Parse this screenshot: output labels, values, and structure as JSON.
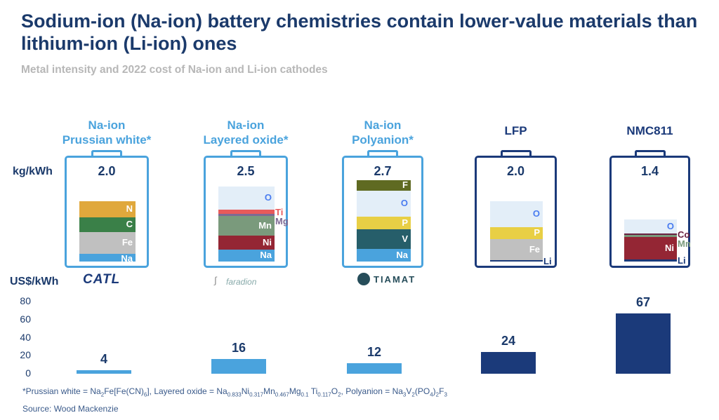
{
  "title": "Sodium-ion (Na-ion) battery chemistries contain lower-value materials than lithium-ion (Li-ion) ones",
  "subtitle": "Metal intensity and 2022 cost of Na-ion and Li-ion cathodes",
  "units": {
    "mass": "kg/kWh",
    "cost": "US$/kWh"
  },
  "colors": {
    "na_ion": "#4aa3dd",
    "li_ion": "#1b3a7a",
    "title": "#1b3a6b"
  },
  "logos": [
    "CATL",
    "faradion",
    "TIAMAT"
  ],
  "chart_data": [
    {
      "type": "stacked-bar",
      "ylabel": "kg/kWh",
      "chemistries": [
        {
          "name": [
            "Na-ion",
            "Prussian white*"
          ],
          "family": "na_ion",
          "total": "2.0",
          "logo": "CATL",
          "segments": [
            {
              "el": "Na",
              "kg": 0.26,
              "color": "#4aa3dd"
            },
            {
              "el": "Fe",
              "kg": 0.72,
              "color": "#c0c0c0"
            },
            {
              "el": "C",
              "kg": 0.49,
              "color": "#3a8048"
            },
            {
              "el": "N",
              "kg": 0.53,
              "color": "#e0a83c"
            }
          ]
        },
        {
          "name": [
            "Na-ion",
            "Layered oxide*"
          ],
          "family": "na_ion",
          "total": "2.5",
          "logo": "faradion",
          "segments": [
            {
              "el": "Na",
              "kg": 0.4,
              "color": "#4aa3dd"
            },
            {
              "el": "Ni",
              "kg": 0.47,
              "color": "#942634"
            },
            {
              "el": "Mn",
              "kg": 0.65,
              "color": "#7a9a7c"
            },
            {
              "el": "Mg",
              "kg": 0.05,
              "color": "#7d6a94",
              "outside": true
            },
            {
              "el": "Ti",
              "kg": 0.14,
              "color": "#e85a5a",
              "outside": true
            },
            {
              "el": "O",
              "kg": 0.79,
              "color": "#e3eef8"
            }
          ]
        },
        {
          "name": [
            "Na-ion",
            "Polyanion*"
          ],
          "family": "na_ion",
          "total": "2.7",
          "logo": "TIAMAT",
          "segments": [
            {
              "el": "Na",
              "kg": 0.42,
              "color": "#4aa3dd"
            },
            {
              "el": "V",
              "kg": 0.65,
              "color": "#265e6a"
            },
            {
              "el": "P",
              "kg": 0.42,
              "color": "#e8cf45"
            },
            {
              "el": "O",
              "kg": 0.86,
              "color": "#e3eef8"
            },
            {
              "el": "F",
              "kg": 0.35,
              "color": "#5f6a22"
            }
          ]
        },
        {
          "name": [
            "LFP"
          ],
          "family": "li_ion",
          "total": "2.0",
          "segments": [
            {
              "el": "Li",
              "kg": 0.05,
              "color": "#1a3a7a",
              "outside": true
            },
            {
              "el": "Fe",
              "kg": 0.7,
              "color": "#c0c0c0"
            },
            {
              "el": "P",
              "kg": 0.4,
              "color": "#e8cf45"
            },
            {
              "el": "O",
              "kg": 0.85,
              "color": "#e3eef8"
            }
          ]
        },
        {
          "name": [
            "NMC811"
          ],
          "family": "li_ion",
          "total": "1.4",
          "segments": [
            {
              "el": "Li",
              "kg": 0.07,
              "color": "#1a3a7a",
              "outside": true
            },
            {
              "el": "Ni",
              "kg": 0.74,
              "color": "#942634"
            },
            {
              "el": "Mn",
              "kg": 0.07,
              "color": "#7a9a7c",
              "outside": true
            },
            {
              "el": "Co",
              "kg": 0.05,
              "color": "#6a2040",
              "outside": true
            },
            {
              "el": "O",
              "kg": 0.47,
              "color": "#e3eef8"
            }
          ]
        }
      ]
    },
    {
      "type": "bar",
      "ylabel": "US$/kWh",
      "ylim": [
        0,
        80
      ],
      "yticks": [
        "0",
        "20",
        "40",
        "60",
        "80"
      ],
      "categories": [
        "Na-ion Prussian white",
        "Na-ion Layered oxide",
        "Na-ion Polyanion",
        "LFP",
        "NMC811"
      ],
      "values": [
        4,
        16,
        12,
        24,
        67
      ],
      "families": [
        "na_ion",
        "na_ion",
        "na_ion",
        "li_ion",
        "li_ion"
      ]
    }
  ],
  "footnote": [
    {
      "t": "*Prussian white = Na"
    },
    {
      "s": "2"
    },
    {
      "t": "Fe[Fe(CN)"
    },
    {
      "s": "6"
    },
    {
      "t": "], Layered oxide = Na"
    },
    {
      "s": "0.833"
    },
    {
      "t": "Ni"
    },
    {
      "s": "0.317"
    },
    {
      "t": "Mn"
    },
    {
      "s": "0.467"
    },
    {
      "t": "Mg"
    },
    {
      "s": "0.1"
    },
    {
      "t": " Ti"
    },
    {
      "s": "0.117"
    },
    {
      "t": "O"
    },
    {
      "s": "2"
    },
    {
      "t": ", Polyanion = Na"
    },
    {
      "s": "3"
    },
    {
      "t": "V"
    },
    {
      "s": "2"
    },
    {
      "t": "(PO"
    },
    {
      "s": "4"
    },
    {
      "t": ")"
    },
    {
      "s": "2"
    },
    {
      "t": "F"
    },
    {
      "s": "3"
    }
  ],
  "source": "Source: Wood Mackenzie"
}
